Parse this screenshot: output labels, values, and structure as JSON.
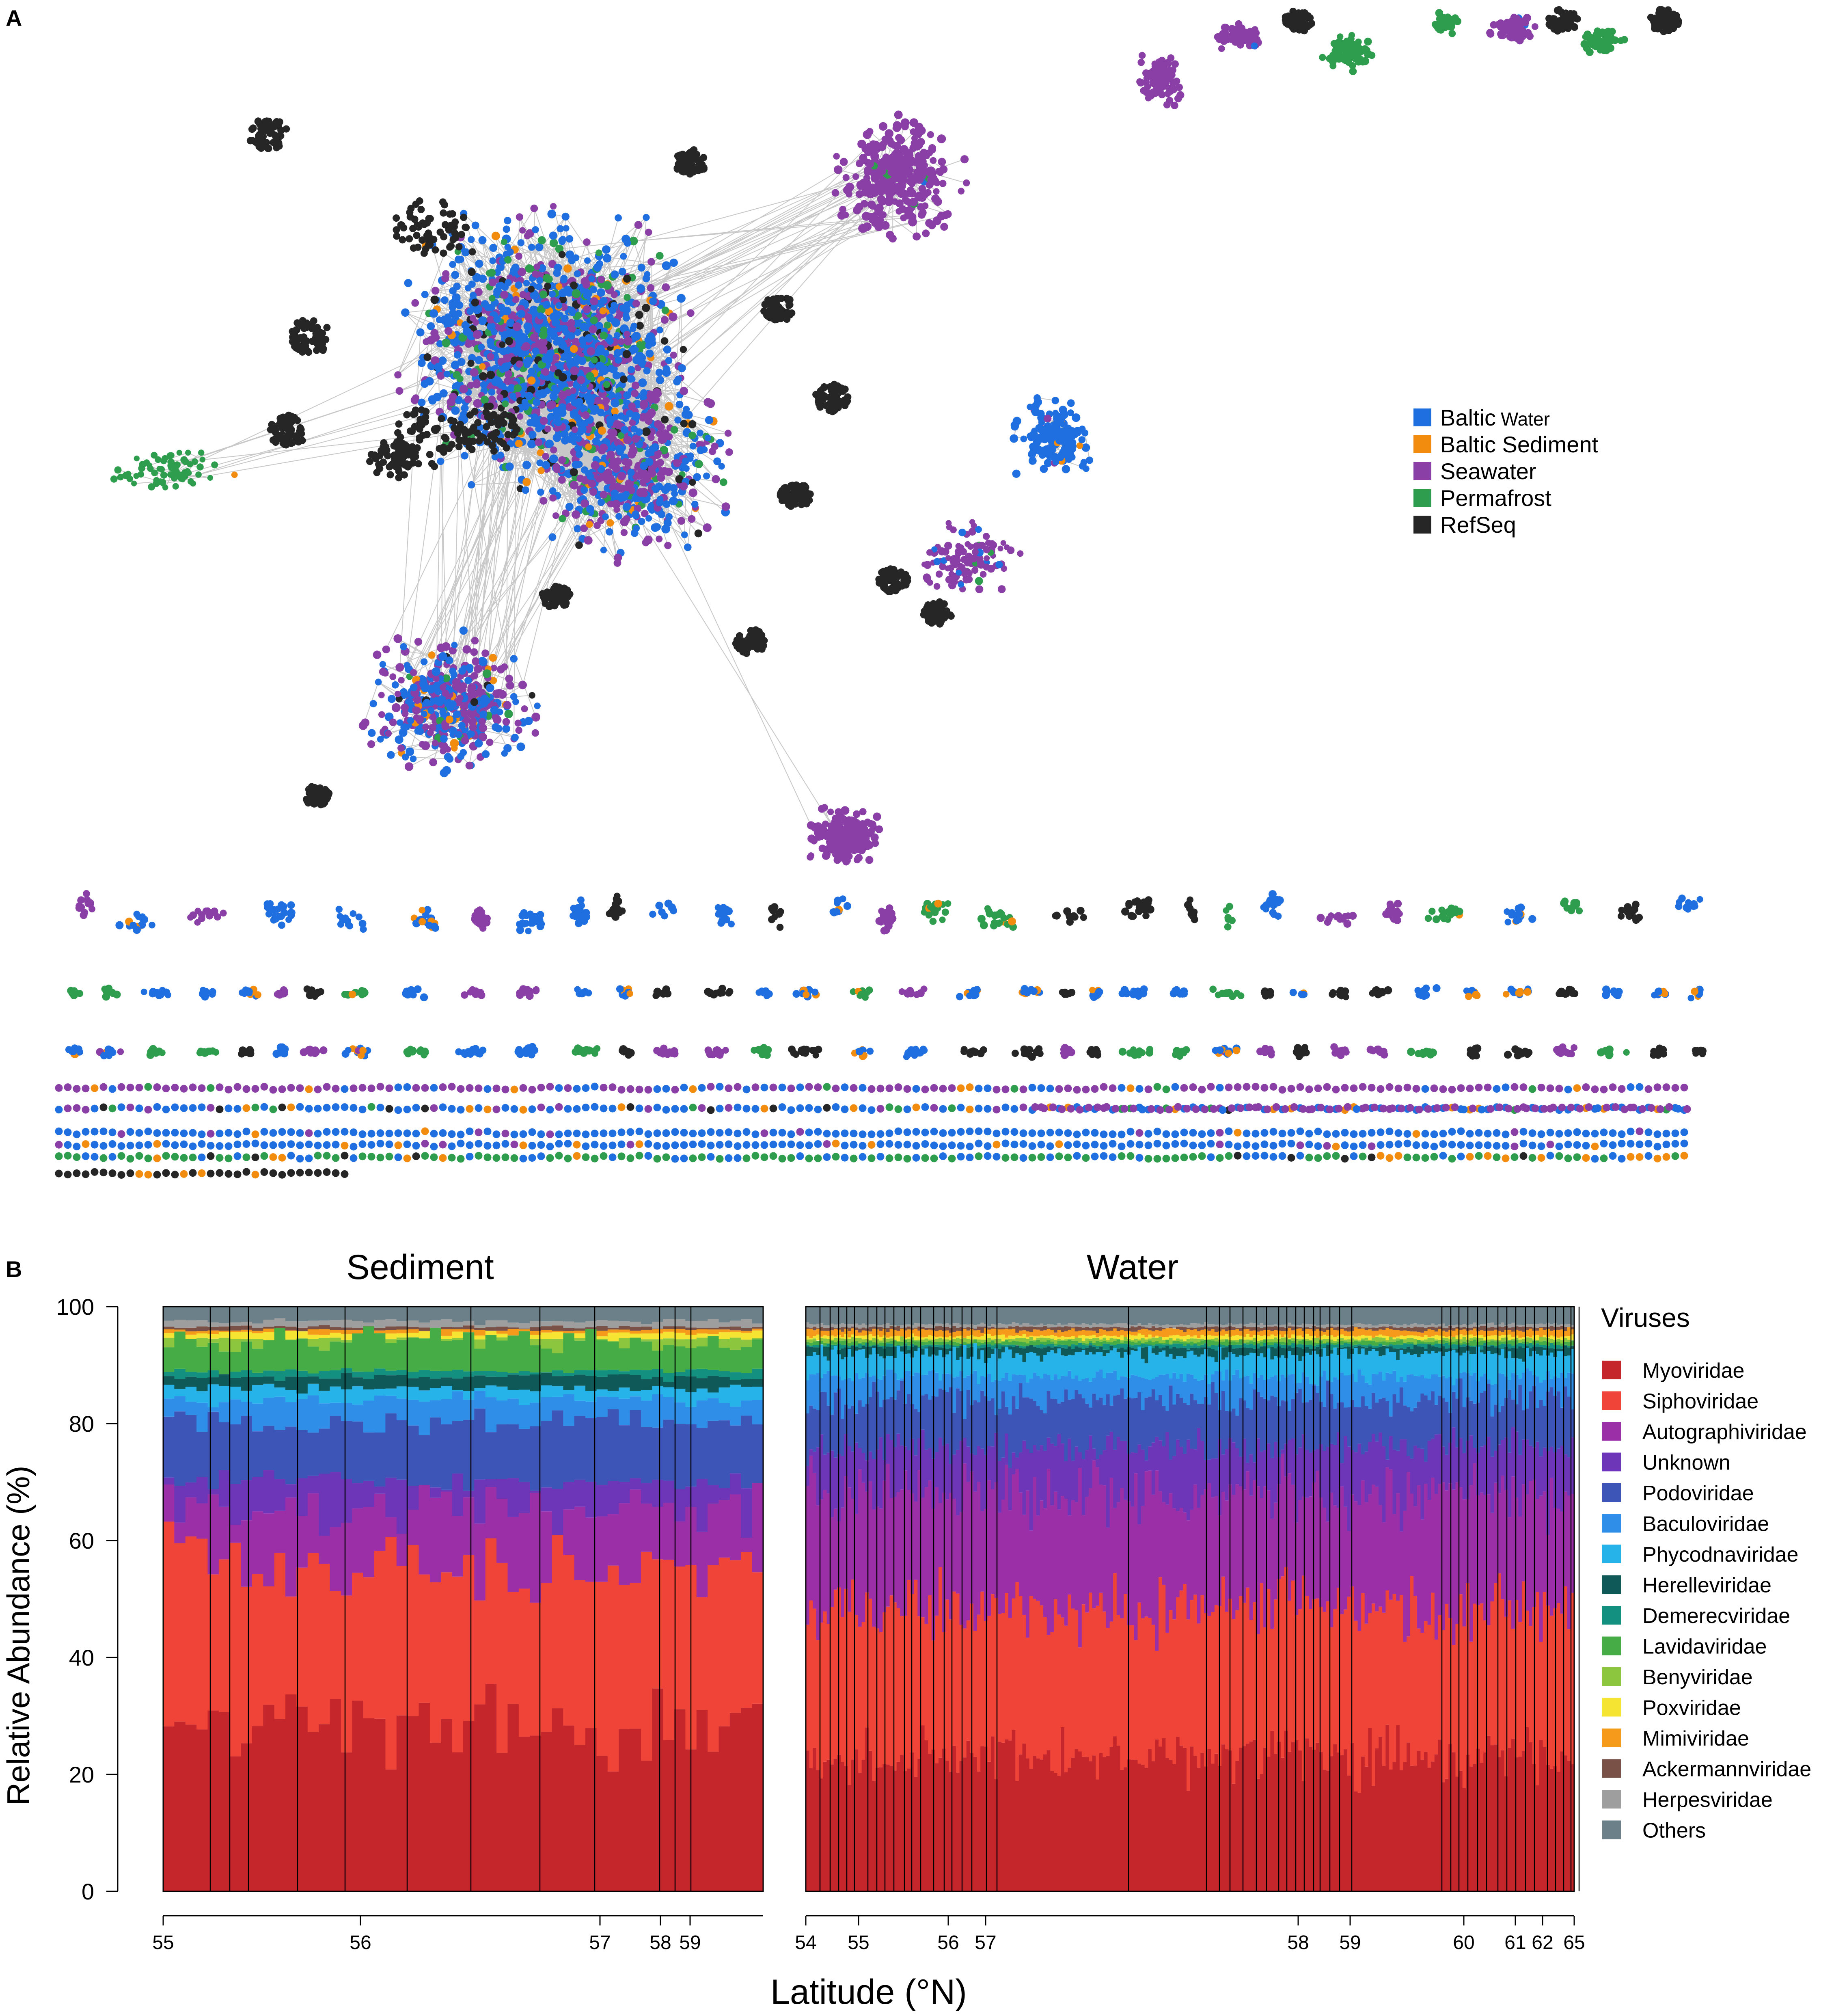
{
  "panel_a": {
    "label": "A",
    "legend": [
      {
        "name": "Baltic",
        "suffix": "Water",
        "color": "#1f6fe0"
      },
      {
        "name": "Baltic Sediment",
        "suffix": "",
        "color": "#f28c0f"
      },
      {
        "name": "Seawater",
        "suffix": "",
        "color": "#8a3fa6"
      },
      {
        "name": "Permafrost",
        "suffix": "",
        "color": "#2e9e4e"
      },
      {
        "name": "RefSeq",
        "suffix": "",
        "color": "#262626"
      }
    ]
  },
  "panel_b": {
    "label": "B"
  },
  "chart_data": [
    {
      "type": "network",
      "title": "",
      "node_colors": [
        "Baltic Water",
        "Baltic Sediment",
        "Seawater",
        "Permafrost",
        "RefSeq"
      ],
      "description_groups": [
        "main connected component",
        "secondary clusters",
        "small disconnected components",
        "singleton rows"
      ]
    },
    {
      "type": "bar",
      "stacked": true,
      "panels": [
        {
          "title": "Sediment",
          "n_bars": 54,
          "x_ticks": [
            "55",
            "56",
            "57",
            "58",
            "59"
          ],
          "x_tick_positions_lat": [
            55,
            56,
            57,
            58,
            59
          ],
          "representative_cumulative_tops": {
            "Myoviridae": 28,
            "Siphoviridae": 55,
            "Autographiviridae": 66,
            "Unknown": 70,
            "Podoviridae": 80,
            "Baculoviridae": 84,
            "Phycodnaviridae": 86,
            "Herelleviridae": 88,
            "Demerecviridae": 89,
            "Lavidaviridae": 94,
            "Benyviridae": 94.5,
            "Poxviridae": 95.5,
            "Mimiviridae": 96,
            "Ackermannviridae": 96.5,
            "Herpesviridae": 97.5,
            "Others": 100
          }
        },
        {
          "title": "Water",
          "n_bars": 220,
          "x_ticks": [
            "54",
            "55",
            "56",
            "57",
            "58",
            "59",
            "60",
            "61",
            "62",
            "65"
          ],
          "representative_cumulative_tops": {
            "Myoviridae": 23,
            "Siphoviridae": 48,
            "Autographiviridae": 68,
            "Unknown": 76,
            "Podoviridae": 84,
            "Baculoviridae": 88,
            "Phycodnaviridae": 92,
            "Herelleviridae": 93,
            "Demerecviridae": 93.5,
            "Lavidaviridae": 94,
            "Benyviridae": 94.5,
            "Poxviridae": 95,
            "Mimiviridae": 96,
            "Ackermannviridae": 96.5,
            "Herpesviridae": 97,
            "Others": 100
          }
        }
      ],
      "ylabel": "Relative Abundance (%)",
      "xlabel": "Latitude (°N)",
      "ylim": [
        0,
        100
      ],
      "y_ticks": [
        0,
        20,
        40,
        60,
        80,
        100
      ],
      "legend_title": "Viruses",
      "series": [
        {
          "name": "Myoviridae",
          "color": "#c4262b"
        },
        {
          "name": "Siphoviridae",
          "color": "#ef4437"
        },
        {
          "name": "Autographiviridae",
          "color": "#9b2fa8"
        },
        {
          "name": "Unknown",
          "color": "#6d36b8"
        },
        {
          "name": "Podoviridae",
          "color": "#3e55b8"
        },
        {
          "name": "Baculoviridae",
          "color": "#2f8ee8"
        },
        {
          "name": "Phycodnaviridae",
          "color": "#25b3ea"
        },
        {
          "name": "Herelleviridae",
          "color": "#0f5a58"
        },
        {
          "name": "Demerecviridae",
          "color": "#139080"
        },
        {
          "name": "Lavidaviridae",
          "color": "#46ac45"
        },
        {
          "name": "Benyviridae",
          "color": "#8cc63f"
        },
        {
          "name": "Poxviridae",
          "color": "#f5e431"
        },
        {
          "name": "Mimiviridae",
          "color": "#f59a1b"
        },
        {
          "name": "Ackermannviridae",
          "color": "#7a5146"
        },
        {
          "name": "Herpesviridae",
          "color": "#9e9e9e"
        },
        {
          "name": "Others",
          "color": "#6b8088"
        }
      ]
    }
  ]
}
